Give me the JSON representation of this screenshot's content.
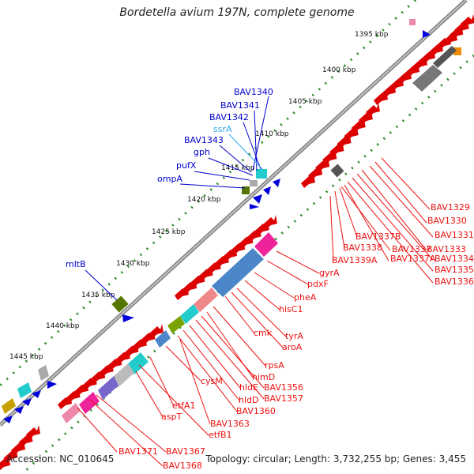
{
  "title": "Bordetella avium 197N, complete genome",
  "footer": {
    "accession": "Accession: NC_010645",
    "summary": "Topology: circular; Length: 3,732,255 bp; Genes: 3,455"
  },
  "colors": {
    "forward_gene": "#dd0000",
    "reverse_gene": "#0000dd",
    "tick_dots": "#2a8a2a",
    "label_forward": "#ee1111",
    "label_reverse": "#0000cc",
    "label_rna": "#33aaee",
    "backbone": "#7f7f7f"
  },
  "kbp_ticks": [
    "1395 kbp",
    "1400 kbp",
    "1405 kbp",
    "1410 kbp",
    "1415 kbp",
    "1420 kbp",
    "1425 kbp",
    "1430 kbp",
    "1435 kbp",
    "1440 kbp",
    "1445 kbp"
  ],
  "labels_reverse": [
    "BAV1340",
    "BAV1341",
    "BAV1342",
    "ssrA",
    "BAV1343",
    "gph",
    "pufX",
    "ompA",
    "mltB"
  ],
  "labels_forward": [
    "BAV1329",
    "BAV1330",
    "BAV1331",
    "BAV1333",
    "BAV1334",
    "BAV1335",
    "BAV1336",
    "BAV1337B",
    "BAV1337",
    "BAV1337A",
    "BAV1338",
    "BAV1339A",
    "gyrA",
    "pdxF",
    "pheA",
    "hisC1",
    "cmk",
    "tyrA",
    "aroA",
    "rpsA",
    "himD",
    "BAV1356",
    "BAV1357",
    "hldE",
    "hldD",
    "BAV1360",
    "cysM",
    "etfA1",
    "etfB1",
    "BAV1363",
    "aspT",
    "BAV1367",
    "BAV1368",
    "BAV1371"
  ]
}
